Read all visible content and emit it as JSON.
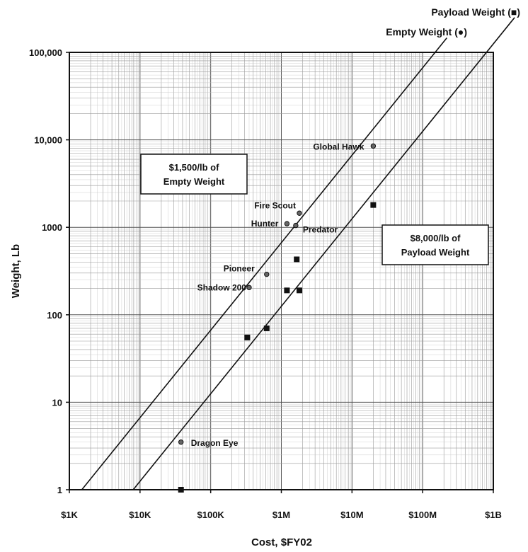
{
  "chart_data": {
    "type": "scatter",
    "xlabel": "Cost, $FY02",
    "ylabel": "Weight, Lb",
    "xscale": "log",
    "yscale": "log",
    "xlim": [
      1000,
      1000000000
    ],
    "ylim": [
      1,
      100000
    ],
    "grid": true,
    "x_ticks": [
      {
        "value": 1000,
        "label": "$1K"
      },
      {
        "value": 10000,
        "label": "$10K"
      },
      {
        "value": 100000,
        "label": "$100K"
      },
      {
        "value": 1000000,
        "label": "$1M"
      },
      {
        "value": 10000000,
        "label": "$10M"
      },
      {
        "value": 100000000,
        "label": "$100M"
      },
      {
        "value": 1000000000,
        "label": "$1B"
      }
    ],
    "y_ticks": [
      {
        "value": 1,
        "label": "1"
      },
      {
        "value": 10,
        "label": "10"
      },
      {
        "value": 100,
        "label": "100"
      },
      {
        "value": 1000,
        "label": "1000"
      },
      {
        "value": 10000,
        "label": "10,000"
      },
      {
        "value": 100000,
        "label": "100,000"
      }
    ],
    "series": [
      {
        "name": "Empty Weight (●)",
        "marker": "circle",
        "points": [
          {
            "label": "Global Hawk",
            "x": 20000000,
            "y": 8500
          },
          {
            "label": "Fire Scout",
            "x": 1800000,
            "y": 1450
          },
          {
            "label": "Hunter",
            "x": 1200000,
            "y": 1100
          },
          {
            "label": "Predator",
            "x": 1600000,
            "y": 1050
          },
          {
            "label": "Pioneer",
            "x": 620000,
            "y": 290
          },
          {
            "label": "Shadow 200",
            "x": 350000,
            "y": 205
          },
          {
            "label": "Dragon Eye",
            "x": 38000,
            "y": 3.5
          }
        ]
      },
      {
        "name": "Payload Weight (■)",
        "marker": "square",
        "points": [
          {
            "x": 20000000,
            "y": 1800
          },
          {
            "x": 1650000,
            "y": 430
          },
          {
            "x": 1200000,
            "y": 190
          },
          {
            "x": 1800000,
            "y": 190
          },
          {
            "x": 620000,
            "y": 70
          },
          {
            "x": 330000,
            "y": 55
          },
          {
            "x": 38000,
            "y": 1
          }
        ]
      }
    ],
    "reference_lines": [
      {
        "name": "Empty Weight (●)",
        "cost_per_lb": 1500,
        "note_lines": [
          "$1,500/lb of",
          "Empty Weight"
        ]
      },
      {
        "name": "Payload Weight (■)",
        "cost_per_lb": 8000,
        "note_lines": [
          "$8,000/lb of",
          "Payload Weight"
        ]
      }
    ]
  },
  "colors": {
    "ink": "#111111",
    "grid": "#9a9a9a",
    "background": "#ffffff"
  }
}
